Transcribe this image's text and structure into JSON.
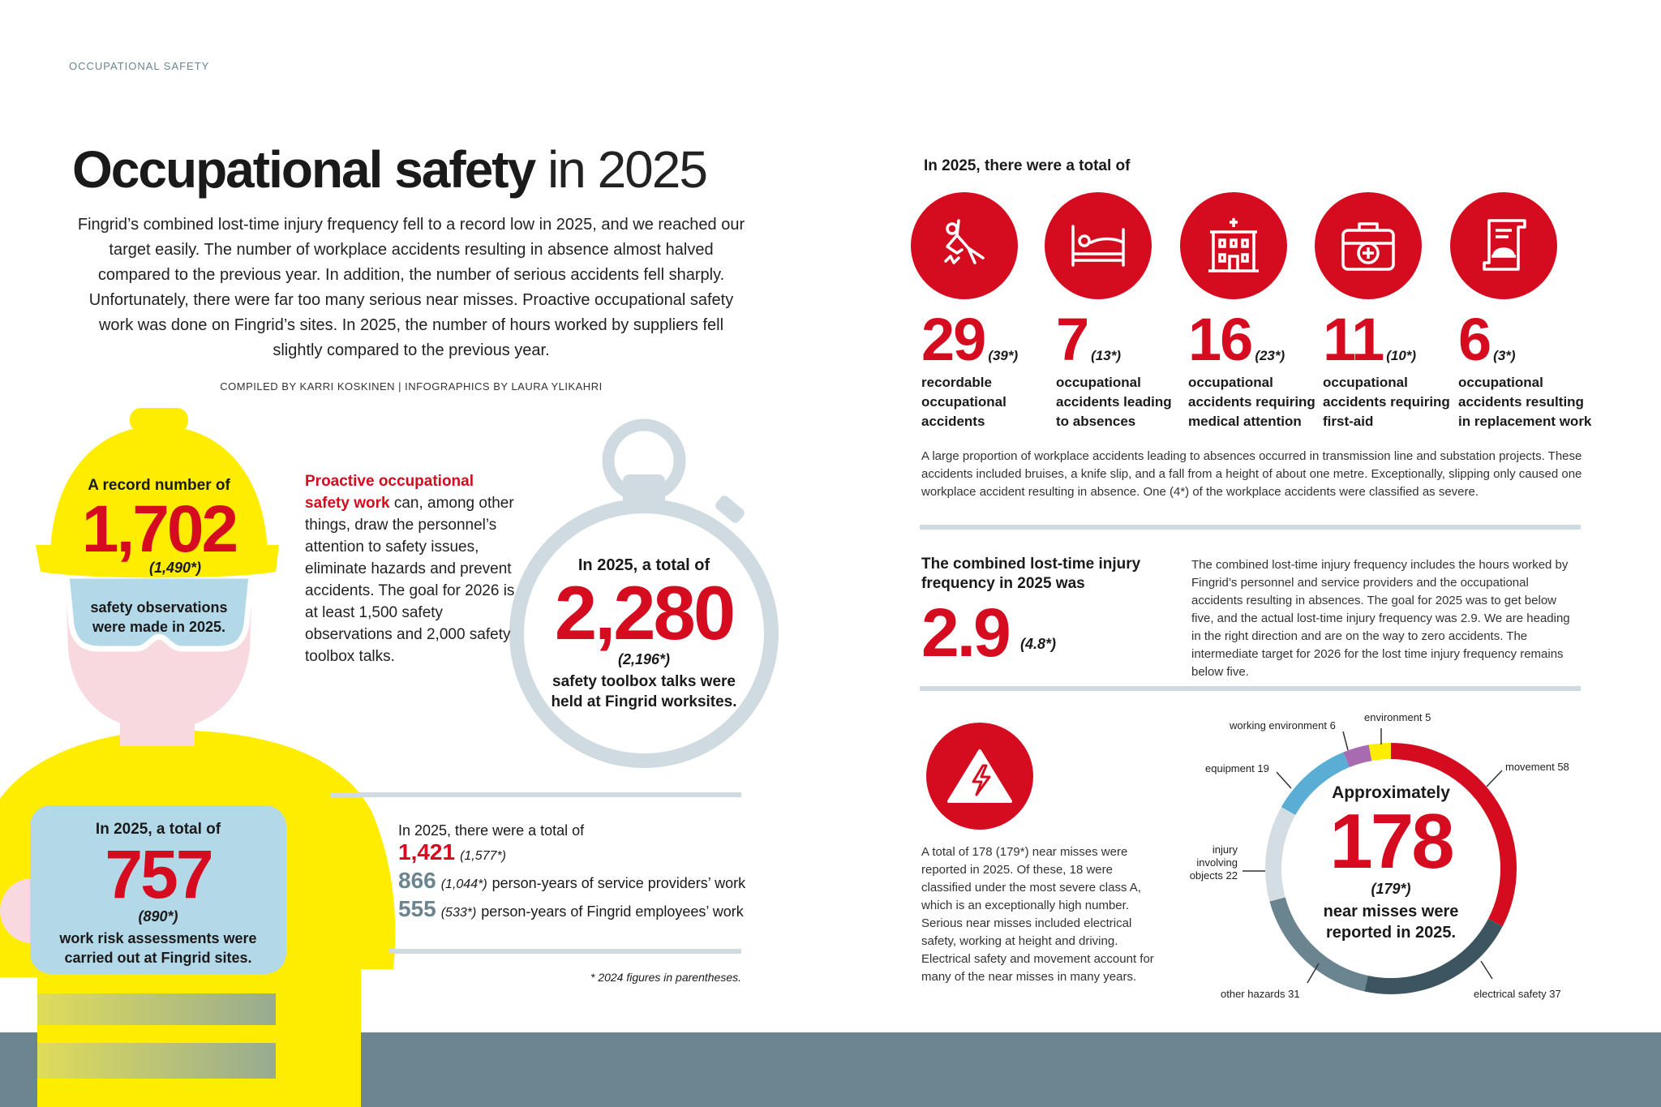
{
  "section_label": "OCCUPATIONAL SAFETY",
  "title": {
    "bold": "Occupational safety",
    "light": "in 2025"
  },
  "intro": "Fingrid’s combined lost-time injury frequency fell to a record low in 2025, and we reached our target easily. The number of workplace accidents resulting in absence almost halved compared to the previous year. In addition, the number of serious accidents fell sharply. Unfortunately, there were far too many serious near misses. Proactive occupational safety work was done on Fingrid’s sites. In 2025, the number of hours worked by suppliers fell slightly compared to the previous year.",
  "credits": "COMPILED BY KARRI KOSKINEN | INFOGRAPHICS BY LAURA YLIKAHRI",
  "observations": {
    "prefix": "A record number of",
    "value": "1,702",
    "previous": "(1,490*)",
    "line1": "safety observations",
    "line2": "were made in 2025."
  },
  "proactive": {
    "highlight": "Proactive occupational safety work",
    "text": " can, among other things, draw the personnel’s attention to safety issues, eliminate hazards and prevent accidents. The goal for 2026 is at least 1,500 safety observations and 2,000 safety toolbox talks."
  },
  "toolbox": {
    "prefix": "In 2025, a total of",
    "value": "2,280",
    "previous": "(2,196*)",
    "line1": "safety toolbox talks were",
    "line2": "held at Fingrid worksites."
  },
  "risk_assessments": {
    "prefix": "In 2025, a total of",
    "value": "757",
    "previous": "(890*)",
    "line1": "work risk assessments were",
    "line2": "carried out at Fingrid sites."
  },
  "person_years": {
    "prefix": "In 2025, there were a total of",
    "total": "1,421",
    "total_previous": "(1,577*)",
    "rows": [
      {
        "value": "866",
        "previous": "(1,044*)",
        "label": "person-years of service providers’ work"
      },
      {
        "value": "555",
        "previous": "(533*)",
        "label": "person-years of Fingrid employees’ work"
      }
    ]
  },
  "footnote": "* 2024 figures in parentheses.",
  "accidents": {
    "heading": "In 2025, there were a total of",
    "items": [
      {
        "icon": "falling-person-icon",
        "value": "29",
        "previous": "(39*)",
        "label": "recordable\noccupational\naccidents"
      },
      {
        "icon": "bed-icon",
        "value": "7",
        "previous": "(13*)",
        "label": "occupational\naccidents leading\nto absences"
      },
      {
        "icon": "hospital-icon",
        "value": "16",
        "previous": "(23*)",
        "label": "occupational\naccidents requiring\nmedical attention"
      },
      {
        "icon": "first-aid-kit-icon",
        "value": "11",
        "previous": "(10*)",
        "label": "occupational\naccidents requiring\nfirst-aid"
      },
      {
        "icon": "document-helmet-icon",
        "value": "6",
        "previous": "(3*)",
        "label": "occupational\naccidents resulting\nin replacement work"
      }
    ],
    "note": "A large proportion of workplace accidents leading to absences occurred in transmission line and substation projects. These accidents included bruises, a knife slip, and a fall from a height of about one metre. Exceptionally, slipping only caused one workplace accident resulting in absence. One (4*) of the workplace accidents were classified as severe."
  },
  "ltif": {
    "heading": "The combined lost-time injury frequency in 2025 was",
    "value": "2.9",
    "previous": "(4.8*)",
    "text": "The combined lost-time injury frequency includes the hours worked by Fingrid’s personnel and service providers and the occupational accidents resulting in absences. The goal for 2025 was to get below five, and the actual lost-time injury frequency was 2.9. We are heading in the right direction and are on the way to zero accidents. The intermediate target for 2026 for the lost time injury frequency remains below five."
  },
  "near_misses": {
    "icon": "electrical-warning-icon",
    "text": "A total of 178 (179*) near misses were reported in 2025. Of these, 18 were classified under the most severe class A, which is an exceptionally high number. Serious near misses included electrical safety, working at height and driving. Electrical safety and movement account for many of the near misses in many years.",
    "center": {
      "prefix": "Approximately",
      "value": "178",
      "previous": "(179*)",
      "line1": "near misses were",
      "line2": "reported in 2025."
    }
  },
  "colors": {
    "accent_red": "#d50c1f",
    "helmet_yellow": "#ffed00",
    "slate": "#6b8590",
    "light_gray": "#d0dbe1",
    "light_blue": "#b3d8e8",
    "skin_pink": "#f9d9e0"
  },
  "chart_data": {
    "type": "donut",
    "categories": [
      "movement",
      "electrical safety",
      "other hazards",
      "injury involving objects",
      "equipment",
      "working environment",
      "environment"
    ],
    "values": [
      58,
      37,
      31,
      22,
      19,
      6,
      5
    ],
    "colors": [
      "#d50c1f",
      "#3d5560",
      "#6b8590",
      "#d3dde3",
      "#5aaed6",
      "#a86ab0",
      "#ffed00"
    ],
    "start": "12 o'clock, clockwise"
  }
}
